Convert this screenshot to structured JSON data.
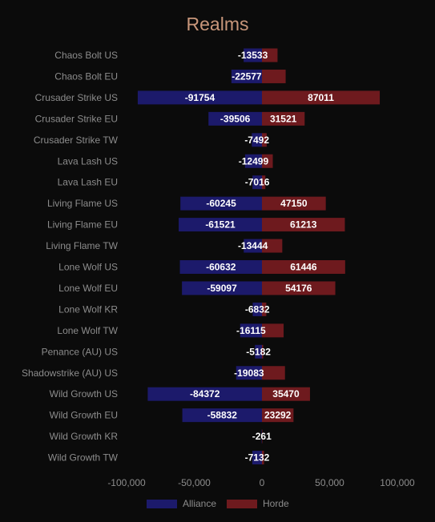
{
  "chart_data": {
    "type": "bar",
    "orientation": "horizontal",
    "title": "Realms",
    "categories": [
      "Chaos Bolt US",
      "Chaos Bolt EU",
      "Crusader Strike US",
      "Crusader Strike EU",
      "Crusader Strike TW",
      "Lava Lash US",
      "Lava Lash EU",
      "Living Flame US",
      "Living Flame EU",
      "Living Flame TW",
      "Lone Wolf US",
      "Lone Wolf EU",
      "Lone Wolf KR",
      "Lone Wolf TW",
      "Penance (AU) US",
      "Shadowstrike (AU) US",
      "Wild Growth US",
      "Wild Growth EU",
      "Wild Growth KR",
      "Wild Growth TW"
    ],
    "series": [
      {
        "name": "Alliance",
        "color": "#1c1a6b",
        "values": [
          -13533,
          -22577,
          -91754,
          -39506,
          -7492,
          -12499,
          -7016,
          -60245,
          -61521,
          -13444,
          -60632,
          -59097,
          -6832,
          -16115,
          -5182,
          -19083,
          -84372,
          -58832,
          -261,
          -7132
        ]
      },
      {
        "name": "Horde",
        "color": "#6e1a1e",
        "values": [
          11500,
          17500,
          87011,
          31521,
          3500,
          8000,
          2500,
          47150,
          61213,
          15000,
          61446,
          54176,
          3200,
          16000,
          900,
          17000,
          35470,
          23292,
          300,
          1500
        ]
      }
    ],
    "horde_labels": [
      "",
      "",
      "87011",
      "31521",
      "",
      "",
      "",
      "47150",
      "61213",
      "",
      "61446",
      "54176",
      "",
      "",
      "",
      "",
      "35470",
      "23292",
      "",
      ""
    ],
    "xlim": [
      -100000,
      100000
    ],
    "xticks": [
      -100000,
      -50000,
      0,
      50000,
      100000
    ],
    "xtick_labels": [
      "-100,000",
      "-50,000",
      "0",
      "50,000",
      "100,000"
    ],
    "legend_position": "bottom-center",
    "grid": false
  }
}
